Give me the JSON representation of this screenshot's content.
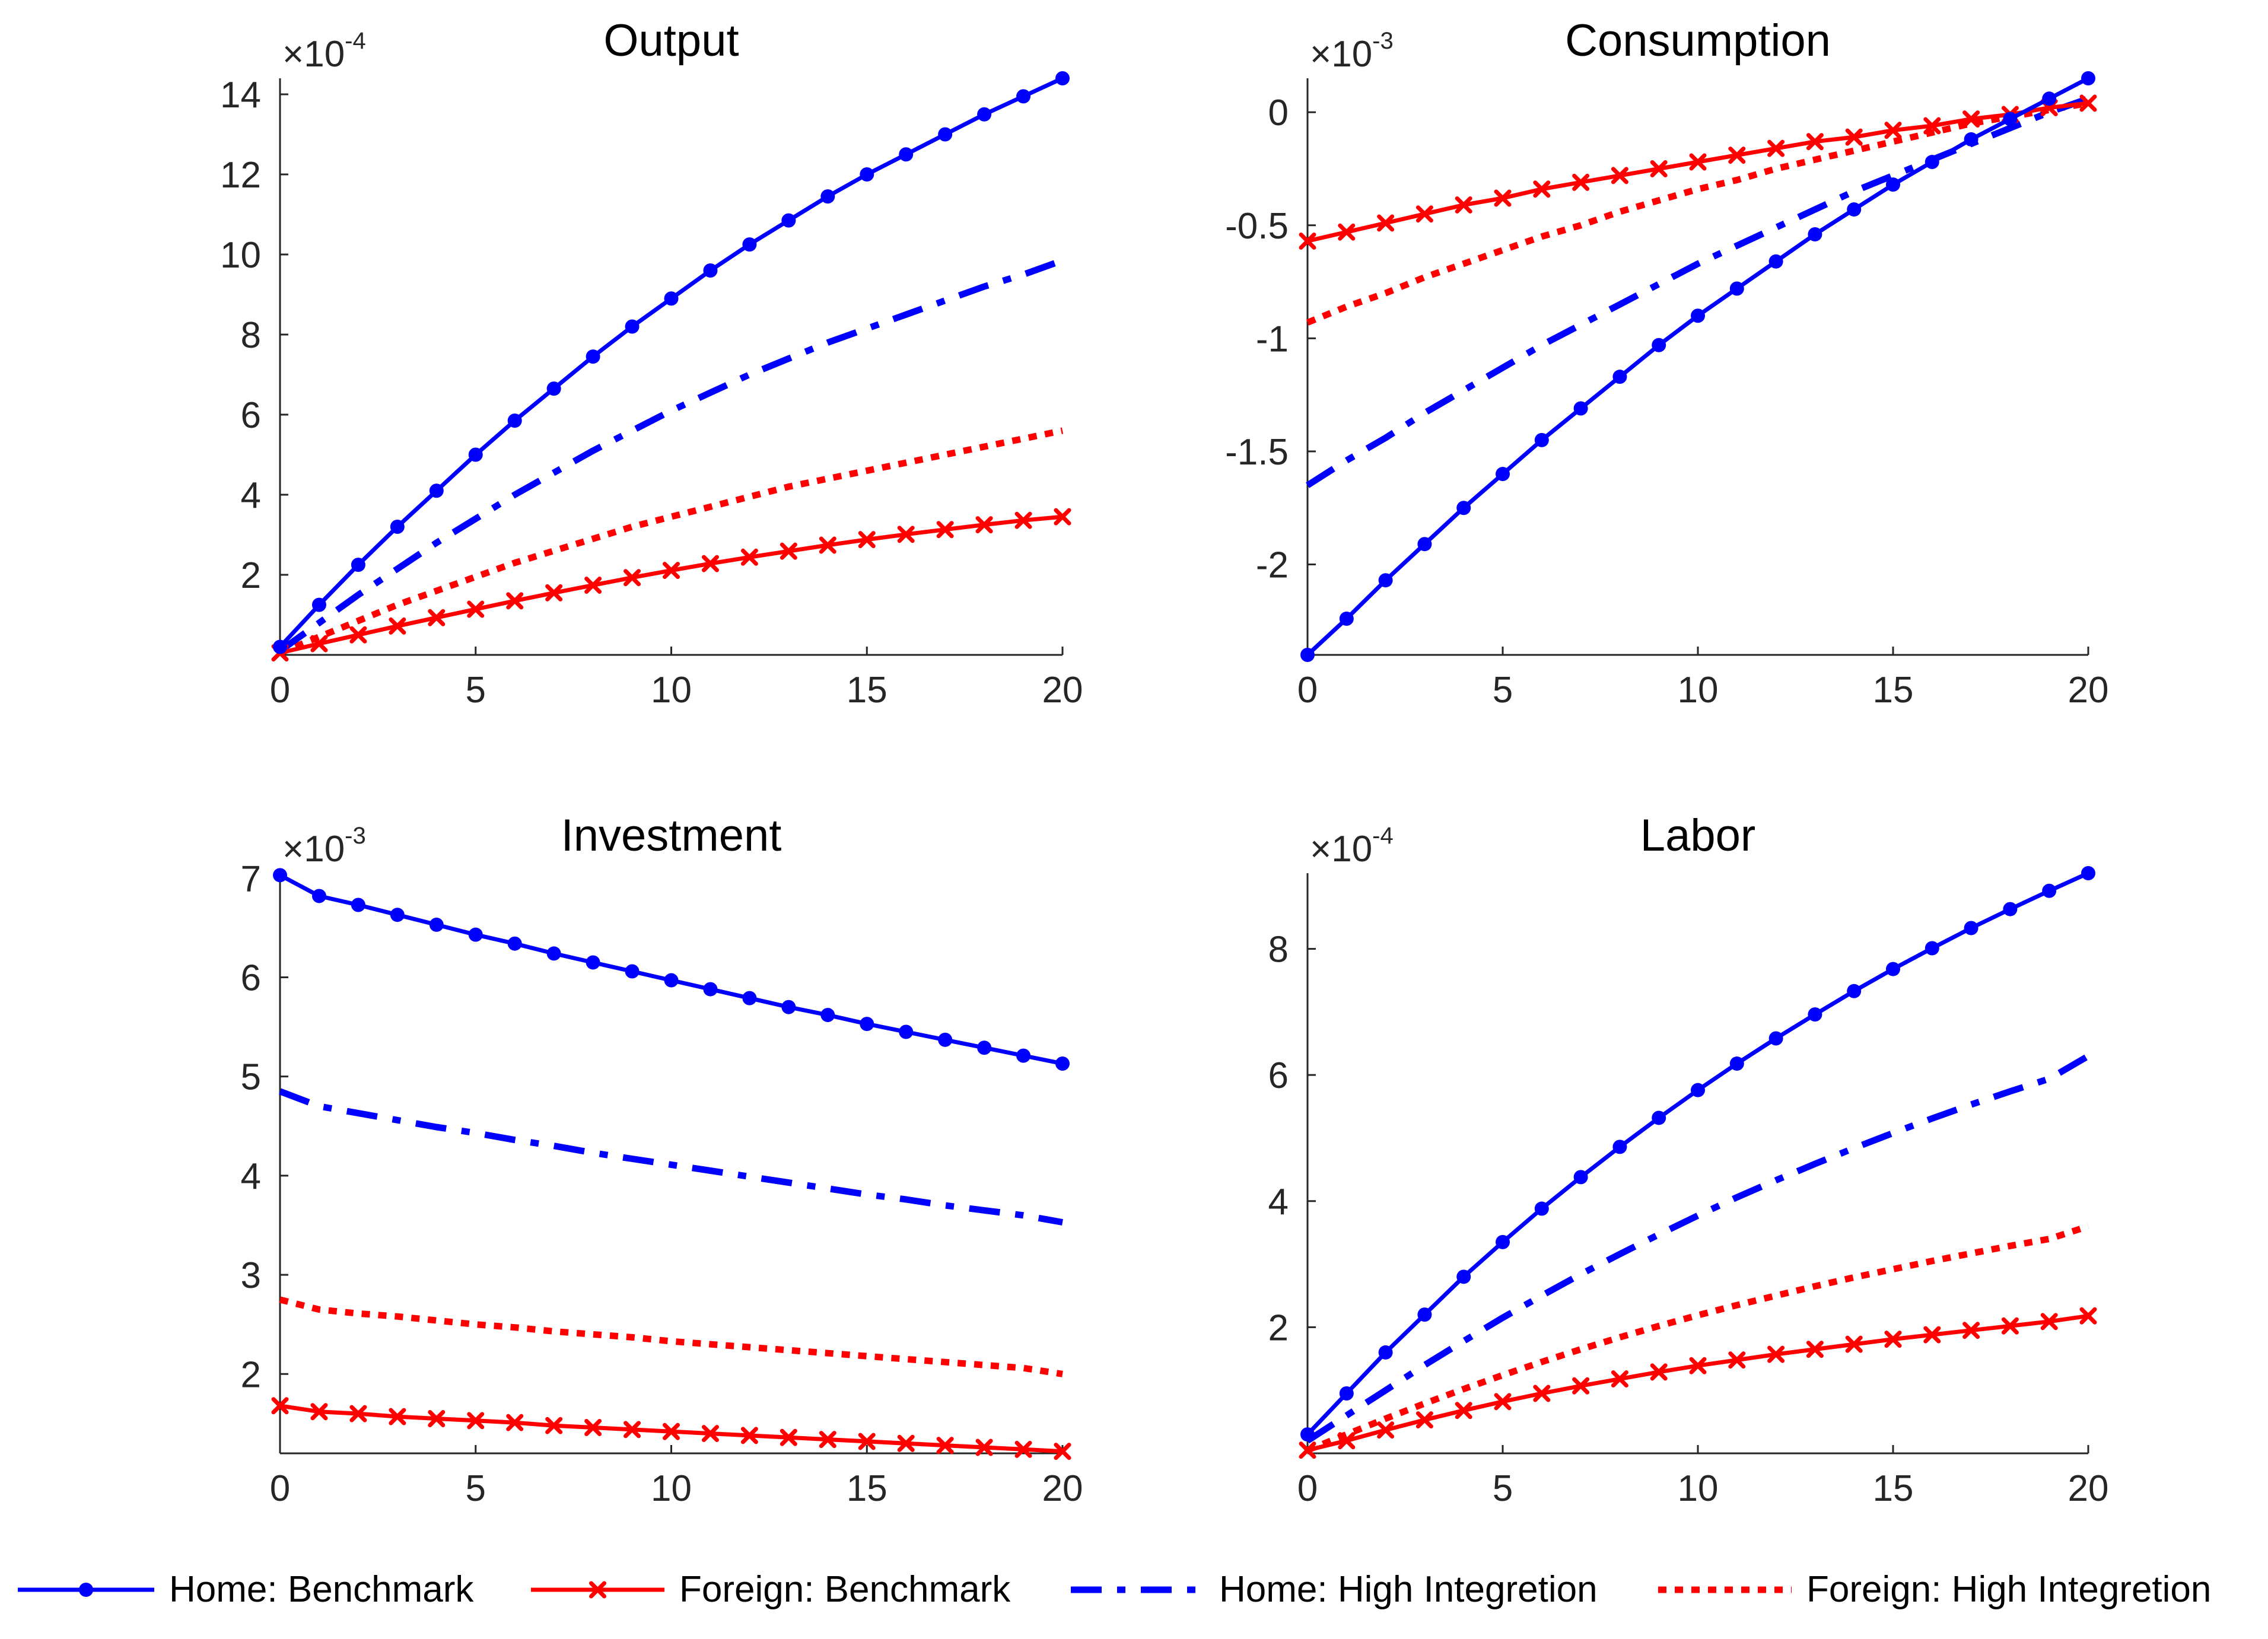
{
  "chart_data": [
    {
      "type": "line",
      "title": "Output",
      "xlabel": "",
      "ylabel": "",
      "exponent_prefix": "×10",
      "exponent": "-4",
      "xlim": [
        0,
        20
      ],
      "ylim": [
        0,
        14.4
      ],
      "xticks": [
        0,
        5,
        10,
        15,
        20
      ],
      "xtick_labels": [
        "0",
        "5",
        "10",
        "15",
        "20"
      ],
      "yticks": [
        2,
        4,
        6,
        8,
        10,
        12,
        14
      ],
      "ytick_labels": [
        "2",
        "4",
        "6",
        "8",
        "10",
        "12",
        "14"
      ],
      "grid": false,
      "x": [
        0,
        1,
        2,
        3,
        4,
        5,
        6,
        7,
        8,
        9,
        10,
        11,
        12,
        13,
        14,
        15,
        16,
        17,
        18,
        19,
        20
      ],
      "series": [
        {
          "name": "Home: Benchmark",
          "color": "#0000ff",
          "style": "solid-dot",
          "values": [
            0.2,
            1.25,
            2.25,
            3.2,
            4.1,
            5.0,
            5.85,
            6.65,
            7.45,
            8.2,
            8.9,
            9.6,
            10.25,
            10.85,
            11.45,
            12.0,
            12.5,
            13.0,
            13.5,
            13.95,
            14.4
          ]
        },
        {
          "name": "Foreign: Benchmark",
          "color": "#ff0000",
          "style": "solid-x",
          "values": [
            0.05,
            0.28,
            0.5,
            0.72,
            0.93,
            1.14,
            1.35,
            1.55,
            1.74,
            1.93,
            2.11,
            2.28,
            2.44,
            2.59,
            2.74,
            2.88,
            3.01,
            3.13,
            3.25,
            3.36,
            3.45
          ]
        },
        {
          "name": "Home: High Integretion",
          "color": "#0000ff",
          "style": "dashdot",
          "values": [
            0.1,
            0.8,
            1.5,
            2.15,
            2.8,
            3.4,
            4.0,
            4.55,
            5.1,
            5.6,
            6.1,
            6.55,
            7.0,
            7.4,
            7.8,
            8.15,
            8.5,
            8.85,
            9.2,
            9.5,
            9.85
          ]
        },
        {
          "name": "Foreign: High Integretion",
          "color": "#ff0000",
          "style": "dotted",
          "values": [
            0.05,
            0.45,
            0.85,
            1.25,
            1.6,
            1.95,
            2.3,
            2.6,
            2.9,
            3.2,
            3.45,
            3.7,
            3.95,
            4.2,
            4.4,
            4.6,
            4.8,
            5.0,
            5.2,
            5.4,
            5.6
          ]
        }
      ]
    },
    {
      "type": "line",
      "title": "Consumption",
      "xlabel": "",
      "ylabel": "",
      "exponent_prefix": "×10",
      "exponent": "-3",
      "xlim": [
        0,
        20
      ],
      "ylim": [
        -2.4,
        0.15
      ],
      "xticks": [
        0,
        5,
        10,
        15,
        20
      ],
      "xtick_labels": [
        "0",
        "5",
        "10",
        "15",
        "20"
      ],
      "yticks": [
        -2,
        -1.5,
        -1,
        -0.5,
        0
      ],
      "ytick_labels": [
        "-2",
        "-1.5",
        "-1",
        "-0.5",
        "0"
      ],
      "grid": false,
      "x": [
        0,
        1,
        2,
        3,
        4,
        5,
        6,
        7,
        8,
        9,
        10,
        11,
        12,
        13,
        14,
        15,
        16,
        17,
        18,
        19,
        20
      ],
      "series": [
        {
          "name": "Home: Benchmark",
          "color": "#0000ff",
          "style": "solid-dot",
          "values": [
            -2.4,
            -2.24,
            -2.07,
            -1.91,
            -1.75,
            -1.6,
            -1.45,
            -1.31,
            -1.17,
            -1.03,
            -0.9,
            -0.78,
            -0.66,
            -0.54,
            -0.43,
            -0.32,
            -0.22,
            -0.12,
            -0.03,
            0.06,
            0.15
          ]
        },
        {
          "name": "Foreign: Benchmark",
          "color": "#ff0000",
          "style": "solid-x",
          "values": [
            -0.57,
            -0.53,
            -0.49,
            -0.45,
            -0.41,
            -0.38,
            -0.34,
            -0.31,
            -0.28,
            -0.25,
            -0.22,
            -0.19,
            -0.16,
            -0.13,
            -0.11,
            -0.08,
            -0.06,
            -0.03,
            -0.01,
            0.02,
            0.04
          ]
        },
        {
          "name": "Home: High Integretion",
          "color": "#0000ff",
          "style": "dashdot",
          "values": [
            -1.65,
            -1.54,
            -1.44,
            -1.33,
            -1.23,
            -1.13,
            -1.03,
            -0.94,
            -0.85,
            -0.76,
            -0.67,
            -0.59,
            -0.51,
            -0.43,
            -0.35,
            -0.28,
            -0.21,
            -0.14,
            -0.07,
            0.0,
            0.06
          ]
        },
        {
          "name": "Foreign: High Integretion",
          "color": "#ff0000",
          "style": "dotted",
          "values": [
            -0.93,
            -0.86,
            -0.8,
            -0.73,
            -0.67,
            -0.61,
            -0.55,
            -0.5,
            -0.44,
            -0.39,
            -0.34,
            -0.3,
            -0.25,
            -0.21,
            -0.17,
            -0.13,
            -0.09,
            -0.05,
            -0.02,
            0.01,
            0.04
          ]
        }
      ]
    },
    {
      "type": "line",
      "title": "Investment",
      "xlabel": "",
      "ylabel": "",
      "exponent_prefix": "×10",
      "exponent": "-3",
      "xlim": [
        0,
        20
      ],
      "ylim": [
        1.2,
        7.05
      ],
      "xticks": [
        0,
        5,
        10,
        15,
        20
      ],
      "xtick_labels": [
        "0",
        "5",
        "10",
        "15",
        "20"
      ],
      "yticks": [
        2,
        3,
        4,
        5,
        6,
        7
      ],
      "ytick_labels": [
        "2",
        "3",
        "4",
        "5",
        "6",
        "7"
      ],
      "grid": false,
      "x": [
        0,
        1,
        2,
        3,
        4,
        5,
        6,
        7,
        8,
        9,
        10,
        11,
        12,
        13,
        14,
        15,
        16,
        17,
        18,
        19,
        20
      ],
      "series": [
        {
          "name": "Home: Benchmark",
          "color": "#0000ff",
          "style": "solid-dot",
          "values": [
            7.03,
            6.82,
            6.73,
            6.63,
            6.53,
            6.43,
            6.34,
            6.24,
            6.15,
            6.06,
            5.97,
            5.88,
            5.79,
            5.7,
            5.62,
            5.53,
            5.45,
            5.37,
            5.29,
            5.21,
            5.13
          ]
        },
        {
          "name": "Foreign: Benchmark",
          "color": "#ff0000",
          "style": "solid-x",
          "values": [
            1.68,
            1.62,
            1.6,
            1.57,
            1.55,
            1.53,
            1.51,
            1.48,
            1.46,
            1.44,
            1.42,
            1.4,
            1.38,
            1.36,
            1.34,
            1.32,
            1.3,
            1.28,
            1.26,
            1.24,
            1.22
          ]
        },
        {
          "name": "Home: High Integretion",
          "color": "#0000ff",
          "style": "dashdot",
          "values": [
            4.85,
            4.7,
            4.63,
            4.56,
            4.49,
            4.43,
            4.36,
            4.3,
            4.23,
            4.17,
            4.11,
            4.05,
            3.99,
            3.93,
            3.87,
            3.81,
            3.76,
            3.7,
            3.65,
            3.6,
            3.53
          ]
        },
        {
          "name": "Foreign: High Integretion",
          "color": "#ff0000",
          "style": "dotted",
          "values": [
            2.75,
            2.65,
            2.61,
            2.58,
            2.54,
            2.5,
            2.47,
            2.43,
            2.4,
            2.37,
            2.33,
            2.3,
            2.27,
            2.24,
            2.21,
            2.18,
            2.15,
            2.12,
            2.09,
            2.06,
            2.0
          ]
        }
      ]
    },
    {
      "type": "line",
      "title": "Labor",
      "xlabel": "",
      "ylabel": "",
      "exponent_prefix": "×10",
      "exponent": "-4",
      "xlim": [
        0,
        20
      ],
      "ylim": [
        0,
        9.2
      ],
      "xticks": [
        0,
        5,
        10,
        15,
        20
      ],
      "xtick_labels": [
        "0",
        "5",
        "10",
        "15",
        "20"
      ],
      "yticks": [
        2,
        4,
        6,
        8
      ],
      "ytick_labels": [
        "2",
        "4",
        "6",
        "8"
      ],
      "grid": false,
      "x": [
        0,
        1,
        2,
        3,
        4,
        5,
        6,
        7,
        8,
        9,
        10,
        11,
        12,
        13,
        14,
        15,
        16,
        17,
        18,
        19,
        20
      ],
      "series": [
        {
          "name": "Home: Benchmark",
          "color": "#0000ff",
          "style": "solid-dot",
          "values": [
            0.3,
            0.95,
            1.6,
            2.2,
            2.8,
            3.35,
            3.88,
            4.38,
            4.86,
            5.32,
            5.76,
            6.18,
            6.58,
            6.96,
            7.33,
            7.68,
            8.01,
            8.33,
            8.63,
            8.92,
            9.2
          ]
        },
        {
          "name": "Foreign: Benchmark",
          "color": "#ff0000",
          "style": "solid-x",
          "values": [
            0.05,
            0.2,
            0.37,
            0.53,
            0.68,
            0.82,
            0.95,
            1.07,
            1.18,
            1.29,
            1.39,
            1.48,
            1.57,
            1.65,
            1.73,
            1.81,
            1.88,
            1.95,
            2.02,
            2.09,
            2.18
          ]
        },
        {
          "name": "Home: High Integretion",
          "color": "#0000ff",
          "style": "dashdot",
          "values": [
            0.2,
            0.6,
            1.0,
            1.4,
            1.78,
            2.15,
            2.5,
            2.84,
            3.16,
            3.47,
            3.77,
            4.06,
            4.33,
            4.59,
            4.84,
            5.08,
            5.31,
            5.53,
            5.74,
            5.94,
            6.3
          ]
        },
        {
          "name": "Foreign: High Integretion",
          "color": "#ff0000",
          "style": "dotted",
          "values": [
            0.05,
            0.3,
            0.55,
            0.79,
            1.02,
            1.24,
            1.45,
            1.65,
            1.84,
            2.02,
            2.19,
            2.35,
            2.5,
            2.65,
            2.79,
            2.92,
            3.05,
            3.17,
            3.29,
            3.4,
            3.6
          ]
        }
      ]
    }
  ],
  "legend": {
    "placement": "bottom",
    "items": [
      {
        "label": "Home: Benchmark",
        "color": "#0000ff",
        "style": "solid-dot"
      },
      {
        "label": "Foreign: Benchmark",
        "color": "#ff0000",
        "style": "solid-x"
      },
      {
        "label": "Home: High Integretion",
        "color": "#0000ff",
        "style": "dashdot"
      },
      {
        "label": "Foreign: High Integretion",
        "color": "#ff0000",
        "style": "dotted"
      }
    ]
  }
}
